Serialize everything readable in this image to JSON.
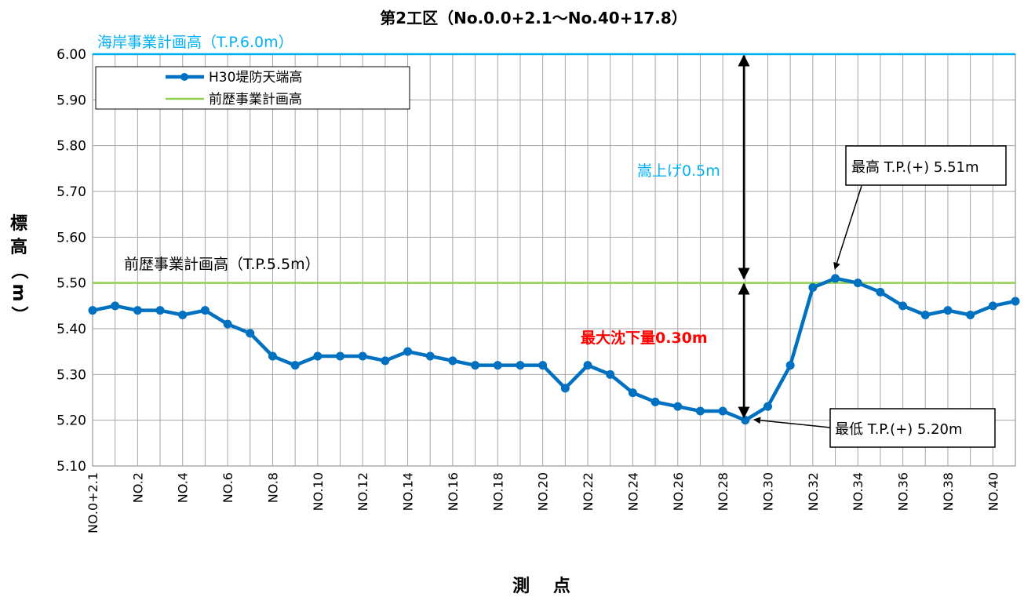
{
  "chart_data": {
    "type": "line",
    "title": "第2工区（No.0.0+2.1～No.40+17.8）",
    "xlabel": "測　 点",
    "ylabel": [
      "標",
      "高",
      "（",
      "m",
      "）"
    ],
    "ylim": [
      5.1,
      6.0
    ],
    "ytick_step": 0.1,
    "ytick_labels": [
      "5.10",
      "5.20",
      "5.30",
      "5.40",
      "5.50",
      "5.60",
      "5.70",
      "5.80",
      "5.90",
      "6.00"
    ],
    "grid": true,
    "legend_position": "top-left",
    "categories": [
      "NO.0+2.1",
      "NO.1",
      "NO.2",
      "NO.3",
      "NO.4",
      "NO.5",
      "NO.6",
      "NO.7",
      "NO.8",
      "NO.9",
      "NO.10",
      "NO.11",
      "NO.12",
      "NO.13",
      "NO.14",
      "NO.15",
      "NO.16",
      "NO.17",
      "NO.18",
      "NO.19",
      "NO.20",
      "NO.21",
      "NO.22",
      "NO.23",
      "NO.24",
      "NO.25",
      "NO.26",
      "NO.27",
      "NO.28",
      "NO.29",
      "NO.30",
      "NO.31",
      "NO.32",
      "NO.33",
      "NO.34",
      "NO.35",
      "NO.36",
      "NO.37",
      "NO.38",
      "NO.39",
      "NO.40",
      "NO.41"
    ],
    "visible_tick_labels": [
      "NO.0+2.1",
      "NO.2",
      "NO.4",
      "NO.6",
      "NO.8",
      "NO.10",
      "NO.12",
      "NO.14",
      "NO.16",
      "NO.18",
      "NO.20",
      "NO.22",
      "NO.24",
      "NO.26",
      "NO.28",
      "NO.30",
      "NO.32",
      "NO.34",
      "NO.36",
      "NO.38",
      "NO.40"
    ],
    "series": [
      {
        "name": "H30堤防天端高",
        "color": "#0070C0",
        "marker": "circle",
        "values": [
          5.44,
          5.45,
          5.44,
          5.44,
          5.43,
          5.44,
          5.41,
          5.39,
          5.34,
          5.32,
          5.34,
          5.34,
          5.34,
          5.33,
          5.35,
          5.34,
          5.33,
          5.32,
          5.32,
          5.32,
          5.32,
          5.27,
          5.32,
          5.3,
          5.26,
          5.24,
          5.23,
          5.22,
          5.22,
          5.2,
          5.23,
          5.32,
          5.49,
          5.51,
          5.5,
          5.48,
          5.45,
          5.43,
          5.44,
          5.43,
          5.45,
          5.46
        ]
      },
      {
        "name": "前歴事業計画高",
        "color": "#92D050",
        "constant": 5.5
      }
    ],
    "reference_lines": [
      {
        "value": 6.0,
        "color": "#00B0F0",
        "label": "海岸事業計画高（T.P.6.0m）"
      }
    ],
    "annotations": {
      "prior_plan_label": "前歴事業計画高（T.P.5.5m）",
      "raise_label": "嵩上げ0.5m",
      "raise_color": "#00B0F0",
      "settlement_label": "最大沈下量0.30m",
      "settlement_color": "#FF0000",
      "max_callout": "最高 T.P.(+) 5.51m",
      "min_callout": "最低 T.P.(+) 5.20m"
    }
  }
}
